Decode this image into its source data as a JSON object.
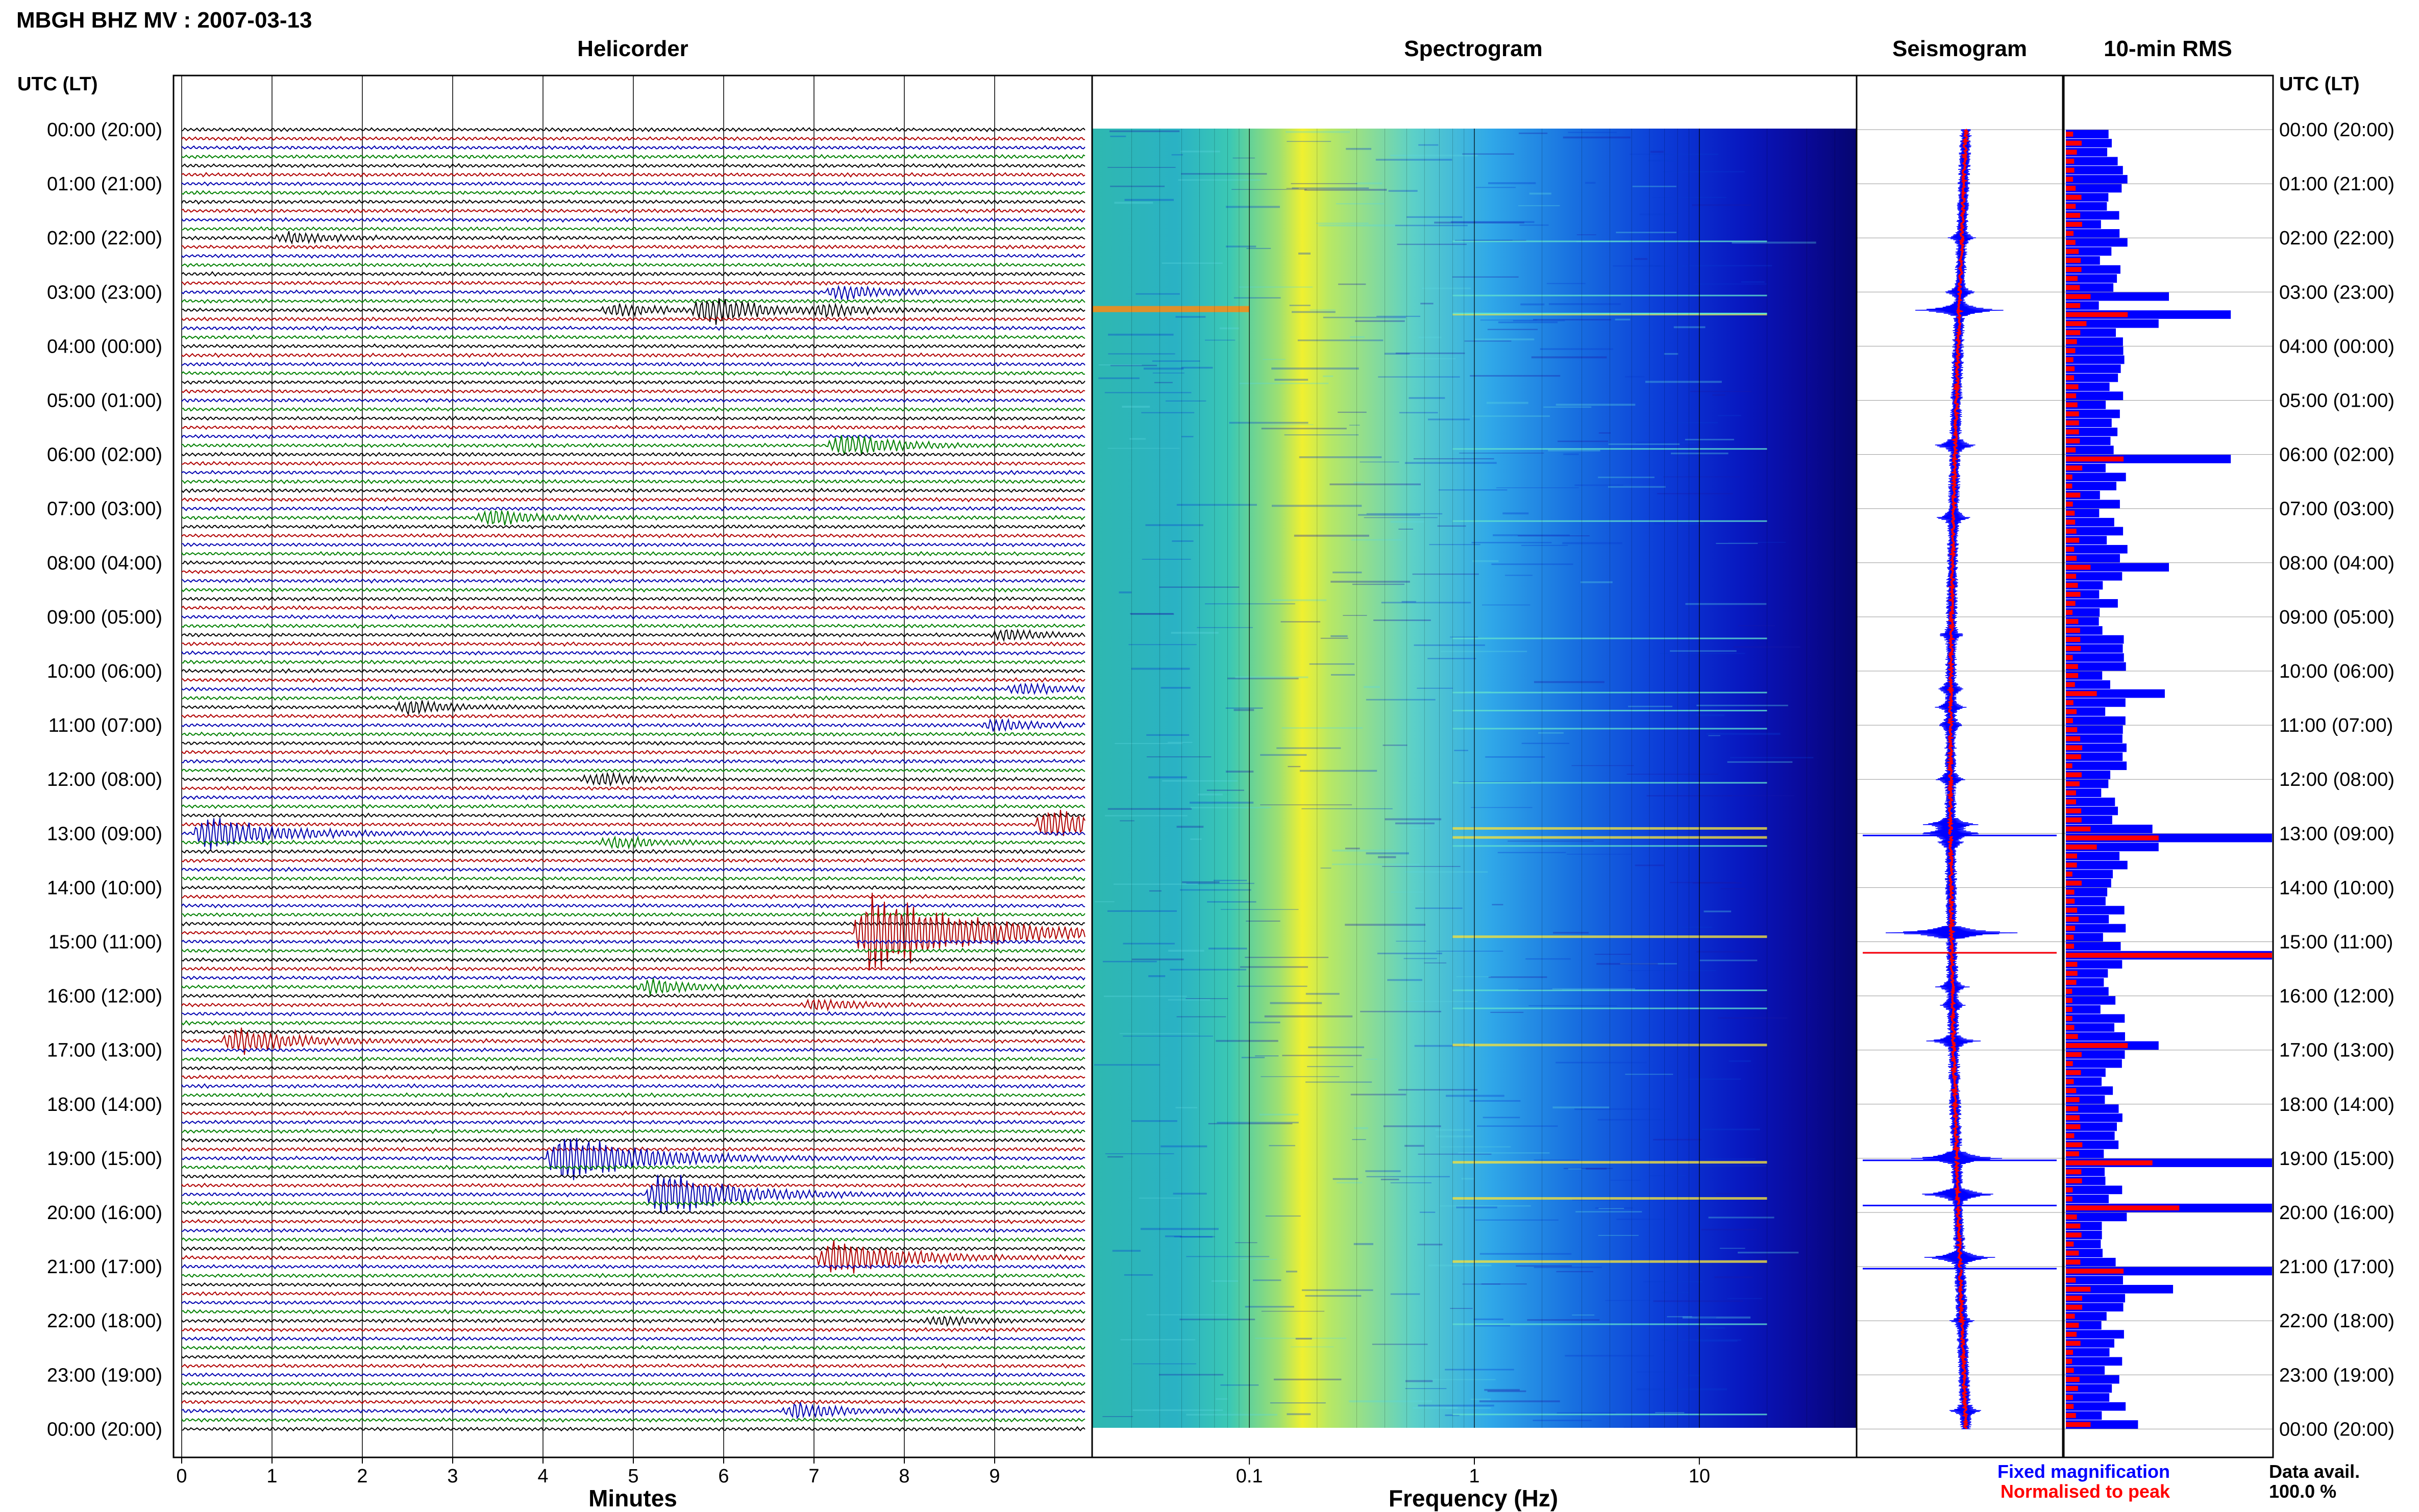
{
  "page_title": "MBGH BHZ MV : 2007-03-13",
  "panels": {
    "helicorder": "Helicorder",
    "spectrogram": "Spectrogram",
    "seismogram": "Seismogram",
    "rms": "10-min RMS"
  },
  "axis_headers": {
    "left": "UTC (LT)",
    "right": "UTC (LT)"
  },
  "time_labels": [
    "00:00 (20:00)",
    "01:00 (21:00)",
    "02:00 (22:00)",
    "03:00 (23:00)",
    "04:00 (00:00)",
    "05:00 (01:00)",
    "06:00 (02:00)",
    "07:00 (03:00)",
    "08:00 (04:00)",
    "09:00 (05:00)",
    "10:00 (06:00)",
    "11:00 (07:00)",
    "12:00 (08:00)",
    "13:00 (09:00)",
    "14:00 (10:00)",
    "15:00 (11:00)",
    "16:00 (12:00)",
    "17:00 (13:00)",
    "18:00 (14:00)",
    "19:00 (15:00)",
    "20:00 (16:00)",
    "21:00 (17:00)",
    "22:00 (18:00)",
    "23:00 (19:00)",
    "00:00 (20:00)"
  ],
  "legend": {
    "fixed": "Fixed magnification",
    "normalised": "Normalised to peak",
    "avail_label": "Data avail.",
    "avail_value": "100.0 %",
    "colors": {
      "fixed": "#0000ff",
      "normalised": "#ff0000"
    }
  },
  "chart_data": [
    {
      "type": "line",
      "panel": "helicorder",
      "xlabel": "Minutes",
      "ylabel": "UTC (LT)",
      "x_ticks": [
        "0",
        "1",
        "2",
        "3",
        "4",
        "5",
        "6",
        "7",
        "8",
        "9"
      ],
      "xlim": [
        0,
        10
      ],
      "trace_colors": [
        "#000000",
        "#b00000",
        "#0000b0",
        "#008000"
      ],
      "rows_per_hour": 6,
      "events": [
        {
          "time": "02:00",
          "minute": 1.2,
          "amp": 1.2
        },
        {
          "time": "03:00",
          "minute": 7.3,
          "amp": 1.6
        },
        {
          "time": "03:20",
          "minute": 5.8,
          "amp": 3.0
        },
        {
          "time": "03:20",
          "minute": 4.8,
          "amp": 1.5
        },
        {
          "time": "03:20",
          "minute": 7.1,
          "amp": 1.2
        },
        {
          "time": "05:50",
          "minute": 7.3,
          "amp": 2.5
        },
        {
          "time": "07:10",
          "minute": 3.4,
          "amp": 1.8
        },
        {
          "time": "09:20",
          "minute": 9.1,
          "amp": 1.1
        },
        {
          "time": "10:20",
          "minute": 9.3,
          "amp": 1.3
        },
        {
          "time": "10:40",
          "minute": 2.5,
          "amp": 1.5
        },
        {
          "time": "11:00",
          "minute": 9.0,
          "amp": 1.3
        },
        {
          "time": "12:00",
          "minute": 4.6,
          "amp": 1.4
        },
        {
          "time": "12:50",
          "minute": 9.6,
          "amp": 3.5
        },
        {
          "time": "13:00",
          "minute": 0.3,
          "amp": 4.0
        },
        {
          "time": "13:10",
          "minute": 4.8,
          "amp": 1.3
        },
        {
          "time": "14:50",
          "minute": 7.6,
          "amp": 9.0
        },
        {
          "time": "15:50",
          "minute": 5.2,
          "amp": 1.6
        },
        {
          "time": "16:10",
          "minute": 7.0,
          "amp": 1.2
        },
        {
          "time": "16:50",
          "minute": 0.6,
          "amp": 3.0
        },
        {
          "time": "19:00",
          "minute": 4.2,
          "amp": 6.0
        },
        {
          "time": "19:40",
          "minute": 5.3,
          "amp": 5.0
        },
        {
          "time": "20:50",
          "minute": 7.2,
          "amp": 4.5
        },
        {
          "time": "22:00",
          "minute": 8.4,
          "amp": 1.0
        },
        {
          "time": "23:40",
          "minute": 6.8,
          "amp": 1.8
        }
      ]
    },
    {
      "type": "heatmap",
      "panel": "spectrogram",
      "xlabel": "Frequency (Hz)",
      "x_scale": "log",
      "xlim": [
        0.02,
        50
      ],
      "x_ticks": [
        0.1,
        1,
        10
      ],
      "x_tick_labels": [
        "0.1",
        "1",
        "10"
      ],
      "colormap": "jet"
    },
    {
      "type": "line",
      "panel": "seismogram",
      "series": [
        {
          "name": "Fixed magnification",
          "color": "#0000ff"
        },
        {
          "name": "Normalised to peak",
          "color": "#ff0000"
        }
      ]
    },
    {
      "type": "bar",
      "panel": "rms",
      "orientation": "horizontal",
      "bins_per_hour": 6,
      "series": [
        {
          "name": "Fixed magnification",
          "color": "#0000ff"
        },
        {
          "name": "Normalised to peak",
          "color": "#ff0000"
        }
      ],
      "spikes": [
        {
          "time": "03:00",
          "fixed": 0.5,
          "normalised": 0.12
        },
        {
          "time": "03:20",
          "fixed": 0.8,
          "normalised": 0.3
        },
        {
          "time": "03:30",
          "fixed": 0.45,
          "normalised": 0.1
        },
        {
          "time": "06:00",
          "fixed": 0.8,
          "normalised": 0.28
        },
        {
          "time": "08:00",
          "fixed": 0.5,
          "normalised": 0.12
        },
        {
          "time": "10:20",
          "fixed": 0.48,
          "normalised": 0.15
        },
        {
          "time": "12:50",
          "fixed": 0.42,
          "normalised": 0.12
        },
        {
          "time": "13:00",
          "fixed": 1.0,
          "normalised": 0.45
        },
        {
          "time": "13:10",
          "fixed": 0.45,
          "normalised": 0.15
        },
        {
          "time": "15:10",
          "fixed": 1.0,
          "normalised": 1.0
        },
        {
          "time": "16:50",
          "fixed": 0.45,
          "normalised": 0.3
        },
        {
          "time": "19:00",
          "fixed": 1.0,
          "normalised": 0.42
        },
        {
          "time": "19:50",
          "fixed": 1.0,
          "normalised": 0.55
        },
        {
          "time": "21:00",
          "fixed": 1.0,
          "normalised": 0.28
        },
        {
          "time": "21:20",
          "fixed": 0.52,
          "normalised": 0.12
        },
        {
          "time": "23:50",
          "fixed": 0.35,
          "normalised": 0.12
        }
      ]
    }
  ]
}
